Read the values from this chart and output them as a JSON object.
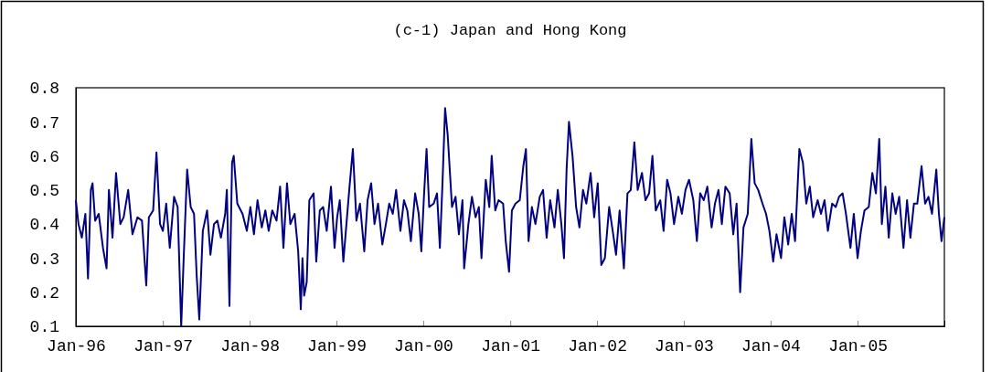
{
  "chart_data": {
    "type": "line",
    "title": "(c-1) Japan and Hong Kong",
    "xlim": [
      "1996-01-01",
      "2006-01-01"
    ],
    "xticks": [
      {
        "value": "1996-01-01",
        "label": "Jan-96"
      },
      {
        "value": "1997-01-01",
        "label": "Jan-97"
      },
      {
        "value": "1998-01-01",
        "label": "Jan-98"
      },
      {
        "value": "1999-01-01",
        "label": "Jan-99"
      },
      {
        "value": "2000-01-01",
        "label": "Jan-00"
      },
      {
        "value": "2001-01-01",
        "label": "Jan-01"
      },
      {
        "value": "2002-01-01",
        "label": "Jan-02"
      },
      {
        "value": "2003-01-01",
        "label": "Jan-03"
      },
      {
        "value": "2004-01-01",
        "label": "Jan-04"
      },
      {
        "value": "2005-01-01",
        "label": "Jan-05"
      }
    ],
    "ylim": [
      0.1,
      0.8
    ],
    "yticks": [
      0.1,
      0.2,
      0.3,
      0.4,
      0.5,
      0.6,
      0.7,
      0.8
    ],
    "grid": false,
    "marker": "none",
    "line_style": "solid",
    "series": [
      {
        "color": "#000080",
        "x": [
          "1996-01-01",
          "1996-01-12",
          "1996-01-26",
          "1996-02-10",
          "1996-02-21",
          "1996-03-04",
          "1996-03-11",
          "1996-03-22",
          "1996-04-06",
          "1996-04-24",
          "1996-05-09",
          "1996-05-19",
          "1996-06-03",
          "1996-06-18",
          "1996-07-06",
          "1996-07-20",
          "1996-08-08",
          "1996-08-26",
          "1996-09-16",
          "1996-10-05",
          "1996-10-23",
          "1996-11-03",
          "1996-11-21",
          "1996-12-05",
          "1996-12-20",
          "1997-01-01",
          "1997-01-15",
          "1997-01-30",
          "1997-02-17",
          "1997-03-04",
          "1997-03-19",
          "1997-03-30",
          "1997-04-13",
          "1997-04-28",
          "1997-05-12",
          "1997-05-23",
          "1997-06-03",
          "1997-06-18",
          "1997-07-06",
          "1997-07-20",
          "1997-08-04",
          "1997-08-18",
          "1997-09-02",
          "1997-09-20",
          "1997-09-27",
          "1997-10-08",
          "1997-10-19",
          "1997-10-26",
          "1997-11-10",
          "1997-12-02",
          "1997-12-20",
          "1998-01-04",
          "1998-01-19",
          "1998-02-03",
          "1998-02-21",
          "1998-03-08",
          "1998-03-22",
          "1998-04-06",
          "1998-04-24",
          "1998-05-09",
          "1998-05-23",
          "1998-06-07",
          "1998-06-21",
          "1998-07-09",
          "1998-07-24",
          "1998-08-04",
          "1998-08-11",
          "1998-08-18",
          "1998-08-29",
          "1998-09-09",
          "1998-09-27",
          "1998-10-08",
          "1998-10-23",
          "1998-11-06",
          "1998-11-21",
          "1998-12-09",
          "1998-12-24",
          "1999-01-04",
          "1999-01-15",
          "1999-01-30",
          "1999-02-25",
          "1999-03-11",
          "1999-03-26",
          "1999-04-10",
          "1999-04-28",
          "1999-05-12",
          "1999-05-27",
          "1999-06-10",
          "1999-06-25",
          "1999-07-13",
          "1999-07-28",
          "1999-08-11",
          "1999-08-26",
          "1999-09-09",
          "1999-09-27",
          "1999-10-12",
          "1999-10-26",
          "1999-11-10",
          "1999-11-28",
          "1999-12-13",
          "1999-12-24",
          "2000-01-04",
          "2000-01-15",
          "2000-01-26",
          "2000-02-14",
          "2000-02-28",
          "2000-03-11",
          "2000-03-22",
          "2000-04-02",
          "2000-04-13",
          "2000-05-01",
          "2000-05-16",
          "2000-05-30",
          "2000-06-14",
          "2000-06-21",
          "2000-07-09",
          "2000-07-24",
          "2000-08-08",
          "2000-08-22",
          "2000-09-02",
          "2000-09-20",
          "2000-10-05",
          "2000-10-15",
          "2000-10-30",
          "2000-11-13",
          "2000-12-02",
          "2000-12-13",
          "2000-12-27",
          "2001-01-08",
          "2001-01-23",
          "2001-02-10",
          "2001-02-25",
          "2001-03-08",
          "2001-03-19",
          "2001-04-02",
          "2001-04-17",
          "2001-05-05",
          "2001-05-19",
          "2001-06-03",
          "2001-06-18",
          "2001-07-06",
          "2001-07-20",
          "2001-08-04",
          "2001-08-15",
          "2001-08-26",
          "2001-09-05",
          "2001-09-20",
          "2001-10-05",
          "2001-10-19",
          "2001-11-03",
          "2001-11-17",
          "2001-12-05",
          "2001-12-20",
          "2002-01-04",
          "2002-01-19",
          "2002-02-03",
          "2002-02-21",
          "2002-03-08",
          "2002-03-22",
          "2002-04-06",
          "2002-04-24",
          "2002-05-09",
          "2002-05-23",
          "2002-06-07",
          "2002-06-21",
          "2002-07-09",
          "2002-07-24",
          "2002-08-08",
          "2002-08-22",
          "2002-09-05",
          "2002-09-24",
          "2002-10-08",
          "2002-10-23",
          "2002-11-06",
          "2002-11-21",
          "2002-12-09",
          "2002-12-24",
          "2003-01-08",
          "2003-01-23",
          "2003-02-10",
          "2003-02-25",
          "2003-03-11",
          "2003-03-26",
          "2003-04-10",
          "2003-04-28",
          "2003-05-12",
          "2003-05-27",
          "2003-06-10",
          "2003-06-25",
          "2003-07-13",
          "2003-07-28",
          "2003-08-11",
          "2003-08-26",
          "2003-09-09",
          "2003-09-27",
          "2003-10-12",
          "2003-10-26",
          "2003-11-10",
          "2003-11-28",
          "2003-12-13",
          "2003-12-27",
          "2004-01-12",
          "2004-01-26",
          "2004-02-14",
          "2004-02-28",
          "2004-03-15",
          "2004-03-30",
          "2004-04-13",
          "2004-05-01",
          "2004-05-16",
          "2004-05-30",
          "2004-06-14",
          "2004-06-28",
          "2004-07-17",
          "2004-07-31",
          "2004-08-15",
          "2004-08-29",
          "2004-09-16",
          "2004-10-01",
          "2004-10-15",
          "2004-10-30",
          "2004-11-13",
          "2004-12-02",
          "2004-12-16",
          "2005-01-01",
          "2005-01-15",
          "2005-01-30",
          "2005-02-17",
          "2005-03-04",
          "2005-03-19",
          "2005-04-02",
          "2005-04-13",
          "2005-04-28",
          "2005-05-12",
          "2005-05-27",
          "2005-06-10",
          "2005-06-25",
          "2005-07-13",
          "2005-07-28",
          "2005-08-11",
          "2005-08-26",
          "2005-09-09",
          "2005-09-27",
          "2005-10-12",
          "2005-10-26",
          "2005-11-10",
          "2005-11-28",
          "2005-12-09",
          "2005-12-20",
          "2006-01-01"
        ],
        "values": [
          0.47,
          0.4,
          0.36,
          0.43,
          0.24,
          0.5,
          0.52,
          0.41,
          0.43,
          0.33,
          0.27,
          0.5,
          0.36,
          0.55,
          0.4,
          0.42,
          0.5,
          0.37,
          0.42,
          0.41,
          0.22,
          0.42,
          0.44,
          0.61,
          0.4,
          0.38,
          0.46,
          0.33,
          0.48,
          0.45,
          0.1,
          0.31,
          0.56,
          0.45,
          0.43,
          0.25,
          0.12,
          0.38,
          0.44,
          0.31,
          0.4,
          0.41,
          0.36,
          0.43,
          0.5,
          0.16,
          0.58,
          0.6,
          0.46,
          0.43,
          0.38,
          0.45,
          0.37,
          0.47,
          0.39,
          0.44,
          0.38,
          0.44,
          0.41,
          0.51,
          0.33,
          0.52,
          0.4,
          0.43,
          0.32,
          0.15,
          0.3,
          0.19,
          0.23,
          0.47,
          0.49,
          0.29,
          0.44,
          0.45,
          0.38,
          0.51,
          0.33,
          0.42,
          0.47,
          0.29,
          0.51,
          0.62,
          0.41,
          0.46,
          0.32,
          0.47,
          0.52,
          0.4,
          0.46,
          0.34,
          0.4,
          0.46,
          0.43,
          0.5,
          0.38,
          0.47,
          0.44,
          0.35,
          0.49,
          0.43,
          0.32,
          0.48,
          0.62,
          0.45,
          0.46,
          0.49,
          0.33,
          0.52,
          0.74,
          0.66,
          0.45,
          0.48,
          0.37,
          0.47,
          0.27,
          0.4,
          0.48,
          0.42,
          0.45,
          0.3,
          0.53,
          0.45,
          0.6,
          0.44,
          0.47,
          0.46,
          0.35,
          0.26,
          0.44,
          0.46,
          0.47,
          0.57,
          0.62,
          0.35,
          0.45,
          0.4,
          0.48,
          0.5,
          0.36,
          0.47,
          0.39,
          0.5,
          0.4,
          0.3,
          0.56,
          0.7,
          0.6,
          0.45,
          0.39,
          0.5,
          0.46,
          0.55,
          0.42,
          0.52,
          0.28,
          0.3,
          0.45,
          0.38,
          0.31,
          0.44,
          0.27,
          0.49,
          0.5,
          0.64,
          0.5,
          0.55,
          0.47,
          0.49,
          0.6,
          0.44,
          0.47,
          0.38,
          0.53,
          0.49,
          0.4,
          0.48,
          0.43,
          0.5,
          0.53,
          0.47,
          0.35,
          0.49,
          0.47,
          0.51,
          0.39,
          0.46,
          0.5,
          0.4,
          0.51,
          0.49,
          0.37,
          0.46,
          0.2,
          0.39,
          0.43,
          0.65,
          0.52,
          0.5,
          0.46,
          0.43,
          0.38,
          0.29,
          0.37,
          0.3,
          0.42,
          0.34,
          0.43,
          0.35,
          0.62,
          0.58,
          0.46,
          0.51,
          0.42,
          0.47,
          0.43,
          0.47,
          0.38,
          0.46,
          0.45,
          0.48,
          0.49,
          0.43,
          0.33,
          0.43,
          0.3,
          0.38,
          0.44,
          0.45,
          0.55,
          0.49,
          0.65,
          0.4,
          0.51,
          0.36,
          0.49,
          0.43,
          0.48,
          0.33,
          0.47,
          0.36,
          0.46,
          0.46,
          0.57,
          0.46,
          0.48,
          0.43,
          0.56,
          0.43,
          0.35,
          0.42
        ]
      }
    ]
  }
}
